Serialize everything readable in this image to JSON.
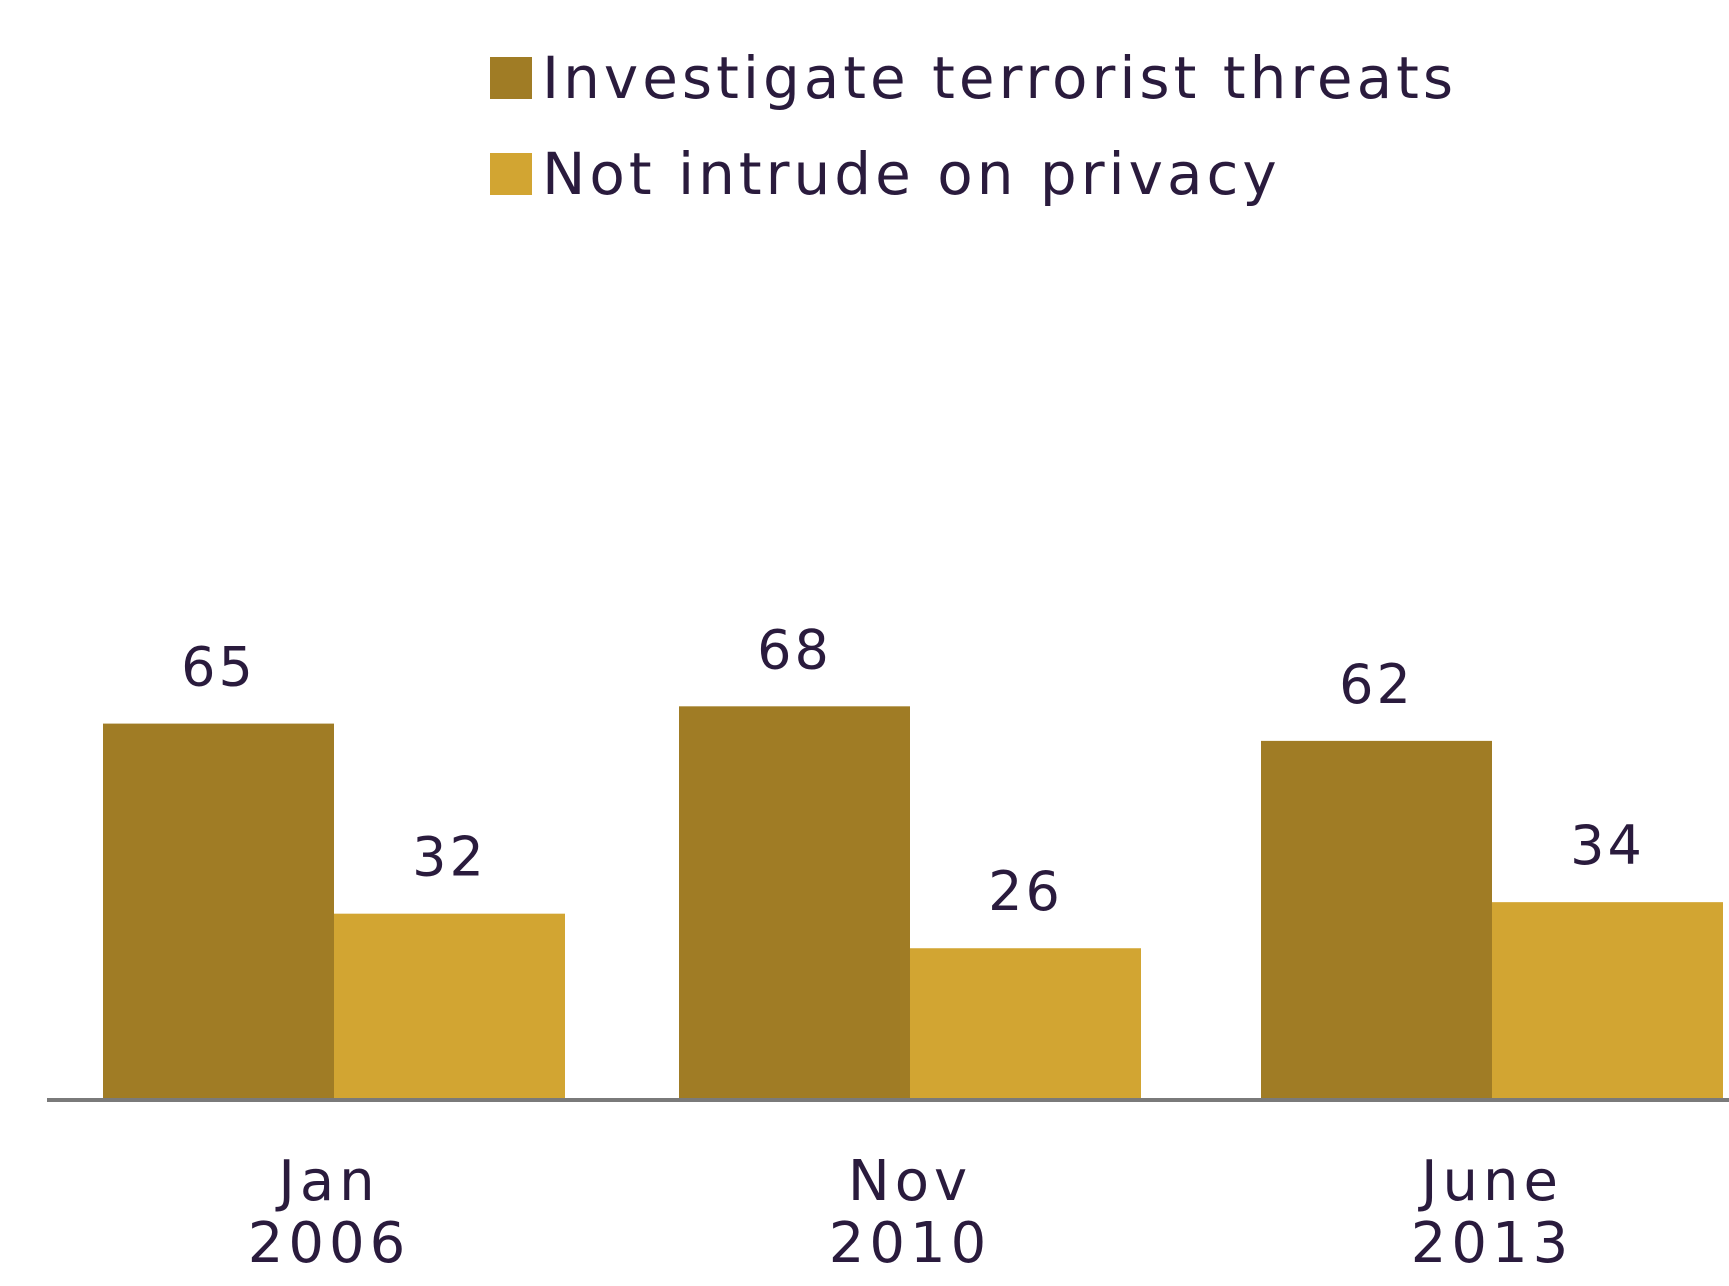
{
  "chart_data": {
    "type": "bar",
    "title": "",
    "xlabel": "",
    "ylabel": "",
    "ylim": [
      0,
      100
    ],
    "grid": false,
    "legend_position": "top",
    "categories": [
      [
        "Jan",
        "2006"
      ],
      [
        "Nov",
        "2010"
      ],
      [
        "June",
        "2013"
      ]
    ],
    "series": [
      {
        "name": "Investigate terrorist threats",
        "color": "#a07c25",
        "values": [
          65,
          68,
          62
        ]
      },
      {
        "name": "Not intrude on privacy",
        "color": "#d2a532",
        "values": [
          32,
          26,
          34
        ]
      }
    ],
    "axis_color": "#7a7a7a",
    "text_color": "#2a1b3d"
  }
}
